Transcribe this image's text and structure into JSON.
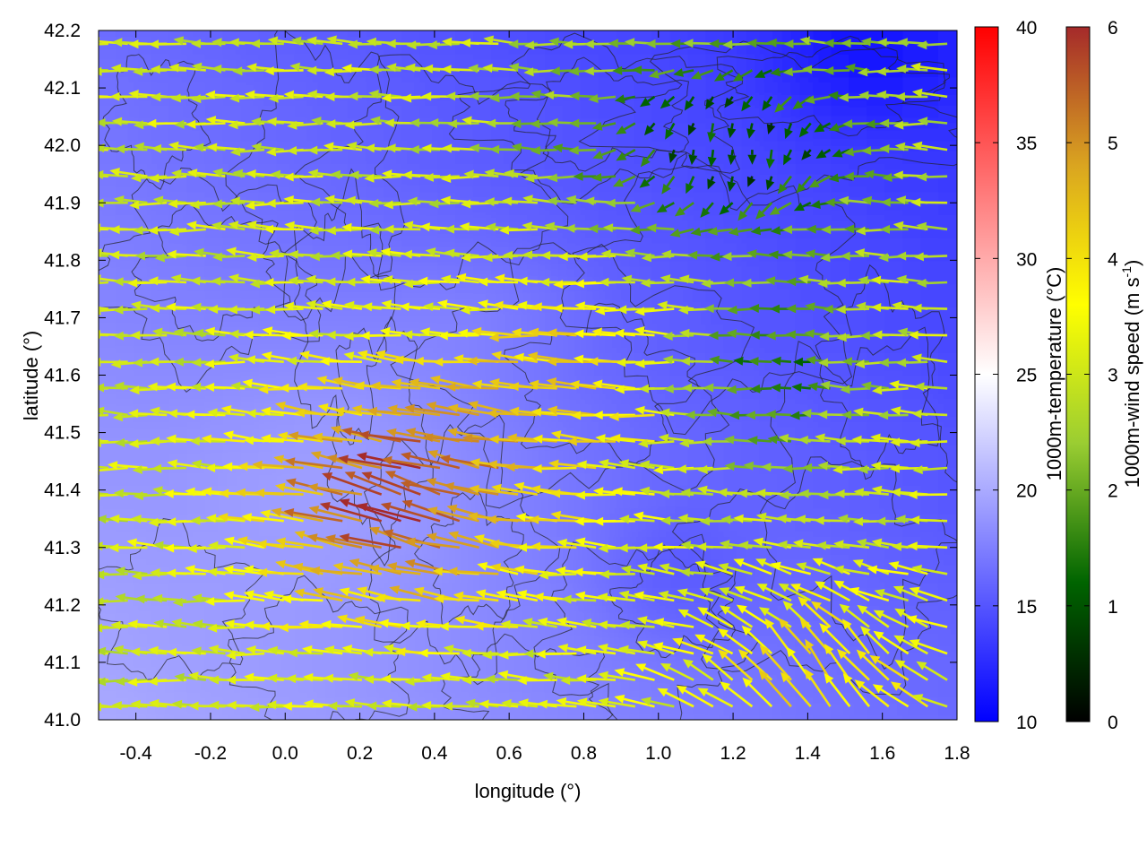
{
  "chart_data": {
    "type": "heatmap",
    "title": "",
    "xlabel": "longitude (°)",
    "ylabel": "latitude (°)",
    "xlim": [
      -0.5,
      1.8
    ],
    "ylim": [
      41.0,
      42.2
    ],
    "x_ticks": [
      "-0.4",
      "-0.2",
      "0.0",
      "0.2",
      "0.4",
      "0.6",
      "0.8",
      "1.0",
      "1.2",
      "1.4",
      "1.6",
      "1.8"
    ],
    "y_ticks": [
      "41.0",
      "41.1",
      "41.2",
      "41.3",
      "41.4",
      "41.5",
      "41.6",
      "41.7",
      "41.8",
      "41.9",
      "42.0",
      "42.1",
      "42.2"
    ],
    "grid": false,
    "layers": [
      "temperature field",
      "terrain contours",
      "wind vectors"
    ],
    "temperature_colorbar": {
      "label": "1000m-temperature (°C)",
      "range": [
        10,
        40
      ],
      "ticks": [
        "10",
        "15",
        "20",
        "25",
        "30",
        "35",
        "40"
      ],
      "colors": [
        "#0000ff",
        "#ffffff",
        "#ff0000"
      ]
    },
    "wind_colorbar": {
      "label": "1000m-wind speed (m s",
      "label_sup": "-1",
      "label_end": ")",
      "range": [
        0,
        6
      ],
      "ticks": [
        "0",
        "1",
        "2",
        "3",
        "4",
        "5",
        "6"
      ],
      "colors": [
        "#000000",
        "#006400",
        "#9acd32",
        "#ffff00",
        "#daa520",
        "#a52a2a"
      ]
    },
    "field_summary": {
      "temperature_range_c": [
        12,
        21
      ],
      "warmest_region": "southwest (lon -0.5 to 0.4, lat 41.0 to 41.6)",
      "coolest_region": "northeast (lon 1.2 to 1.8, lat 41.9 to 42.2)",
      "wind_direction": "mostly easterly to south-easterly (flow toward the west / north-west)",
      "strongest_wind_ms": 6,
      "strongest_wind_region": "lower Ebro valley, lon 0.2 to 0.6, lat 41.2 to 41.6"
    }
  }
}
